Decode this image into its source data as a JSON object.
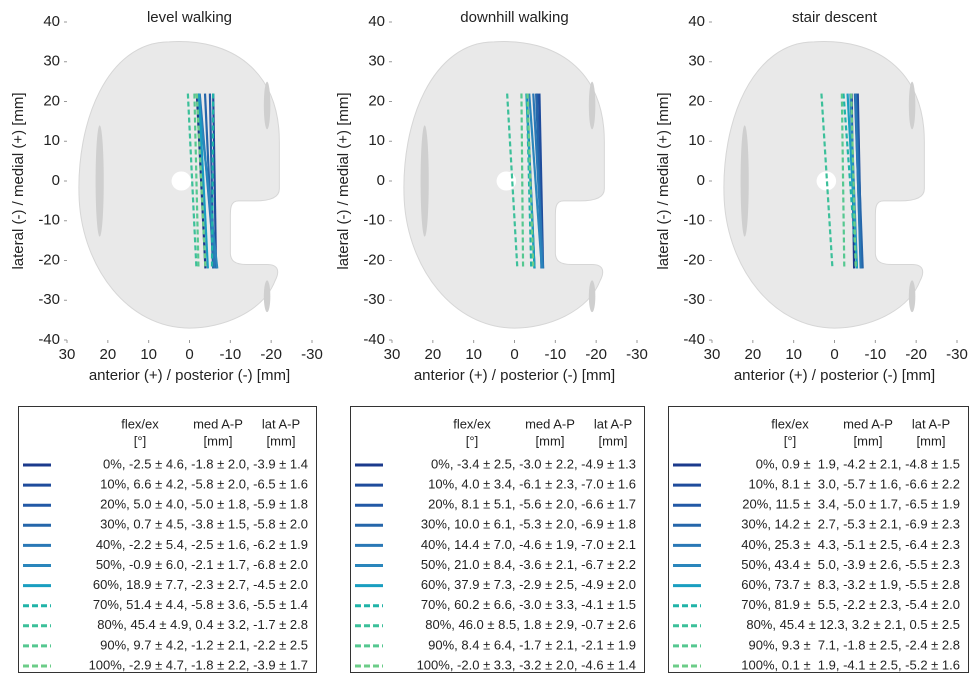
{
  "chart_data": [
    {
      "type": "line",
      "title": "level walking",
      "x_label": "anterior (+) / posterior (-) [mm]",
      "y_label": "lateral (-) / medial (+) [mm]",
      "xlim": [
        30,
        -30
      ],
      "ylim": [
        -40,
        40
      ],
      "xticks": [
        30,
        20,
        10,
        0,
        -10,
        -20,
        -30
      ],
      "yticks": [
        -40,
        -30,
        -20,
        -10,
        0,
        10,
        20,
        30,
        40
      ],
      "legend_header": [
        [
          "flex/ex",
          "[°]"
        ],
        [
          "med A-P",
          "[mm]"
        ],
        [
          "lat A-P",
          "[mm]"
        ]
      ],
      "series": [
        {
          "name": "0%, -2.5 ± 4.6, -1.8 ± 2.0, -3.9 ± 1.4",
          "color": "#1b3a8c",
          "dashed": false,
          "x": [
            -1.8,
            -3.9
          ],
          "y": [
            22,
            -22
          ]
        },
        {
          "name": "10%, 6.6 ± 4.2, -5.8 ± 2.0, -6.5 ± 1.6",
          "color": "#1f4c9c",
          "dashed": false,
          "x": [
            -5.8,
            -6.5
          ],
          "y": [
            22,
            -22
          ]
        },
        {
          "name": "20%, 5.0 ± 4.0, -5.0 ± 1.8, -5.9 ± 1.8",
          "color": "#2259a6",
          "dashed": false,
          "x": [
            -5.0,
            -5.9
          ],
          "y": [
            22,
            -22
          ]
        },
        {
          "name": "30%, 0.7 ± 4.5, -3.8 ± 1.5, -5.8 ± 2.0",
          "color": "#2566aa",
          "dashed": false,
          "x": [
            -3.8,
            -5.8
          ],
          "y": [
            22,
            -22
          ]
        },
        {
          "name": "40%, -2.2 ± 5.4, -2.5 ± 1.6, -6.2 ± 1.9",
          "color": "#2a78b6",
          "dashed": false,
          "x": [
            -2.5,
            -6.2
          ],
          "y": [
            22,
            -22
          ]
        },
        {
          "name": "50%, -0.9 ± 6.0, -2.1 ± 1.7, -6.8 ± 2.0",
          "color": "#2a86bc",
          "dashed": false,
          "x": [
            -2.1,
            -6.8
          ],
          "y": [
            22,
            -22
          ]
        },
        {
          "name": "60%, 18.9 ± 7.7, -2.3 ± 2.7, -4.5 ± 2.0",
          "color": "#1a9ec0",
          "dashed": false,
          "x": [
            -2.3,
            -4.5
          ],
          "y": [
            22,
            -22
          ]
        },
        {
          "name": "70%, 51.4 ± 4.4, -5.8 ± 3.6, -5.5 ± 1.4",
          "color": "#20b4a8",
          "dashed": true,
          "x": [
            -5.8,
            -5.5
          ],
          "y": [
            22,
            -22
          ]
        },
        {
          "name": "80%, 45.4 ± 4.9, 0.4 ± 3.2, -1.7 ± 2.8",
          "color": "#3cc09a",
          "dashed": true,
          "x": [
            0.4,
            -1.7
          ],
          "y": [
            22,
            -22
          ]
        },
        {
          "name": "90%, 9.7 ± 4.2, -1.2 ± 2.1, -2.2 ± 2.5",
          "color": "#55c890",
          "dashed": true,
          "x": [
            -1.2,
            -2.2
          ],
          "y": [
            22,
            -22
          ]
        },
        {
          "name": "100%, -2.9 ± 4.7, -1.8 ± 2.2, -3.9 ± 1.7",
          "color": "#6ccd88",
          "dashed": true,
          "x": [
            -1.8,
            -3.9
          ],
          "y": [
            22,
            -22
          ]
        }
      ]
    },
    {
      "type": "line",
      "title": "downhill walking",
      "x_label": "anterior (+) / posterior (-) [mm]",
      "y_label": "lateral (-) / medial (+) [mm]",
      "xlim": [
        30,
        -30
      ],
      "ylim": [
        -40,
        40
      ],
      "xticks": [
        30,
        20,
        10,
        0,
        -10,
        -20,
        -30
      ],
      "yticks": [
        -40,
        -30,
        -20,
        -10,
        0,
        10,
        20,
        30,
        40
      ],
      "legend_header": [
        [
          "flex/ex",
          "[°]"
        ],
        [
          "med A-P",
          "[mm]"
        ],
        [
          "lat A-P",
          "[mm]"
        ]
      ],
      "series": [
        {
          "name": "0%, -3.4 ± 2.5, -3.0 ± 2.2, -4.9 ± 1.3",
          "color": "#1b3a8c",
          "dashed": false,
          "x": [
            -3.0,
            -4.9
          ],
          "y": [
            22,
            -22
          ]
        },
        {
          "name": "10%, 4.0 ± 3.4, -6.1 ± 2.3, -7.0 ± 1.6",
          "color": "#1f4c9c",
          "dashed": false,
          "x": [
            -6.1,
            -7.0
          ],
          "y": [
            22,
            -22
          ]
        },
        {
          "name": "20%, 8.1 ± 5.1, -5.6 ± 2.0, -6.6 ± 1.7",
          "color": "#2259a6",
          "dashed": false,
          "x": [
            -5.6,
            -6.6
          ],
          "y": [
            22,
            -22
          ]
        },
        {
          "name": "30%, 10.0 ± 6.1, -5.3 ± 2.0, -6.9 ± 1.8",
          "color": "#2566aa",
          "dashed": false,
          "x": [
            -5.3,
            -6.9
          ],
          "y": [
            22,
            -22
          ]
        },
        {
          "name": "40%, 14.4 ± 7.0, -4.6 ± 1.9, -7.0 ± 2.1",
          "color": "#2a78b6",
          "dashed": false,
          "x": [
            -4.6,
            -7.0
          ],
          "y": [
            22,
            -22
          ]
        },
        {
          "name": "50%, 21.0 ± 8.4, -3.6 ± 2.1, -6.7 ± 2.2",
          "color": "#2a86bc",
          "dashed": false,
          "x": [
            -3.6,
            -6.7
          ],
          "y": [
            22,
            -22
          ]
        },
        {
          "name": "60%, 37.9 ± 7.3, -2.9 ± 2.5, -4.9 ± 2.0",
          "color": "#1a9ec0",
          "dashed": false,
          "x": [
            -2.9,
            -4.9
          ],
          "y": [
            22,
            -22
          ]
        },
        {
          "name": "70%, 60.2 ± 6.6, -3.0 ± 3.3, -4.1 ± 1.5",
          "color": "#20b4a8",
          "dashed": true,
          "x": [
            -3.0,
            -4.1
          ],
          "y": [
            22,
            -22
          ]
        },
        {
          "name": "80%, 46.0 ± 8.5, 1.8 ± 2.9, -0.7 ± 2.6",
          "color": "#3cc09a",
          "dashed": true,
          "x": [
            1.8,
            -0.7
          ],
          "y": [
            22,
            -22
          ]
        },
        {
          "name": "90%, 8.4 ± 6.4, -1.7 ± 2.1, -2.1 ± 1.9",
          "color": "#55c890",
          "dashed": true,
          "x": [
            -1.7,
            -2.1
          ],
          "y": [
            22,
            -22
          ]
        },
        {
          "name": "100%, -2.0 ± 3.3, -3.2 ± 2.0, -4.6 ± 1.4",
          "color": "#6ccd88",
          "dashed": true,
          "x": [
            -3.2,
            -4.6
          ],
          "y": [
            22,
            -22
          ]
        }
      ]
    },
    {
      "type": "line",
      "title": "stair descent",
      "x_label": "anterior (+) / posterior (-) [mm]",
      "y_label": "lateral (-) / medial (+) [mm]",
      "xlim": [
        30,
        -30
      ],
      "ylim": [
        -40,
        40
      ],
      "xticks": [
        30,
        20,
        10,
        0,
        -10,
        -20,
        -30
      ],
      "yticks": [
        -40,
        -30,
        -20,
        -10,
        0,
        10,
        20,
        30,
        40
      ],
      "legend_header": [
        [
          "flex/ex",
          "[°]"
        ],
        [
          "med A-P",
          "[mm]"
        ],
        [
          "lat A-P",
          "[mm]"
        ]
      ],
      "series": [
        {
          "name": "0%, 0.9 ±  1.9, -4.2 ± 2.1, -4.8 ± 1.5",
          "color": "#1b3a8c",
          "dashed": false,
          "x": [
            -4.2,
            -4.8
          ],
          "y": [
            22,
            -22
          ]
        },
        {
          "name": "10%, 8.1 ±  3.0, -5.7 ± 1.6, -6.6 ± 2.2",
          "color": "#1f4c9c",
          "dashed": false,
          "x": [
            -5.7,
            -6.6
          ],
          "y": [
            22,
            -22
          ]
        },
        {
          "name": "20%, 11.5 ±  3.4, -5.0 ± 1.7, -6.5 ± 1.9",
          "color": "#2259a6",
          "dashed": false,
          "x": [
            -5.0,
            -6.5
          ],
          "y": [
            22,
            -22
          ]
        },
        {
          "name": "30%, 14.2 ±  2.7, -5.3 ± 2.1, -6.9 ± 2.3",
          "color": "#2566aa",
          "dashed": false,
          "x": [
            -5.3,
            -6.9
          ],
          "y": [
            22,
            -22
          ]
        },
        {
          "name": "40%, 25.3 ±  4.3, -5.1 ± 2.5, -6.4 ± 2.3",
          "color": "#2a78b6",
          "dashed": false,
          "x": [
            -5.1,
            -6.4
          ],
          "y": [
            22,
            -22
          ]
        },
        {
          "name": "50%, 43.4 ±  5.0, -3.9 ± 2.6, -5.5 ± 2.3",
          "color": "#2a86bc",
          "dashed": false,
          "x": [
            -3.9,
            -5.5
          ],
          "y": [
            22,
            -22
          ]
        },
        {
          "name": "60%, 73.7 ±  8.3, -3.2 ± 1.9, -5.5 ± 2.8",
          "color": "#1a9ec0",
          "dashed": false,
          "x": [
            -3.2,
            -5.5
          ],
          "y": [
            22,
            -22
          ]
        },
        {
          "name": "70%, 81.9 ±  5.5, -2.2 ± 2.3, -5.4 ± 2.0",
          "color": "#20b4a8",
          "dashed": true,
          "x": [
            -2.2,
            -5.4
          ],
          "y": [
            22,
            -22
          ]
        },
        {
          "name": "80%, 45.4 ± 12.3, 3.2 ± 2.1, 0.5 ± 2.5",
          "color": "#3cc09a",
          "dashed": true,
          "x": [
            3.2,
            0.5
          ],
          "y": [
            22,
            -22
          ]
        },
        {
          "name": "90%, 9.3 ±  7.1, -1.8 ± 2.5, -2.4 ± 2.8",
          "color": "#55c890",
          "dashed": true,
          "x": [
            -1.8,
            -2.4
          ],
          "y": [
            22,
            -22
          ]
        },
        {
          "name": "100%, 0.1 ±  1.9, -4.1 ± 2.5, -5.2 ± 1.6",
          "color": "#6ccd88",
          "dashed": true,
          "x": [
            -4.1,
            -5.2
          ],
          "y": [
            22,
            -22
          ]
        }
      ]
    }
  ]
}
